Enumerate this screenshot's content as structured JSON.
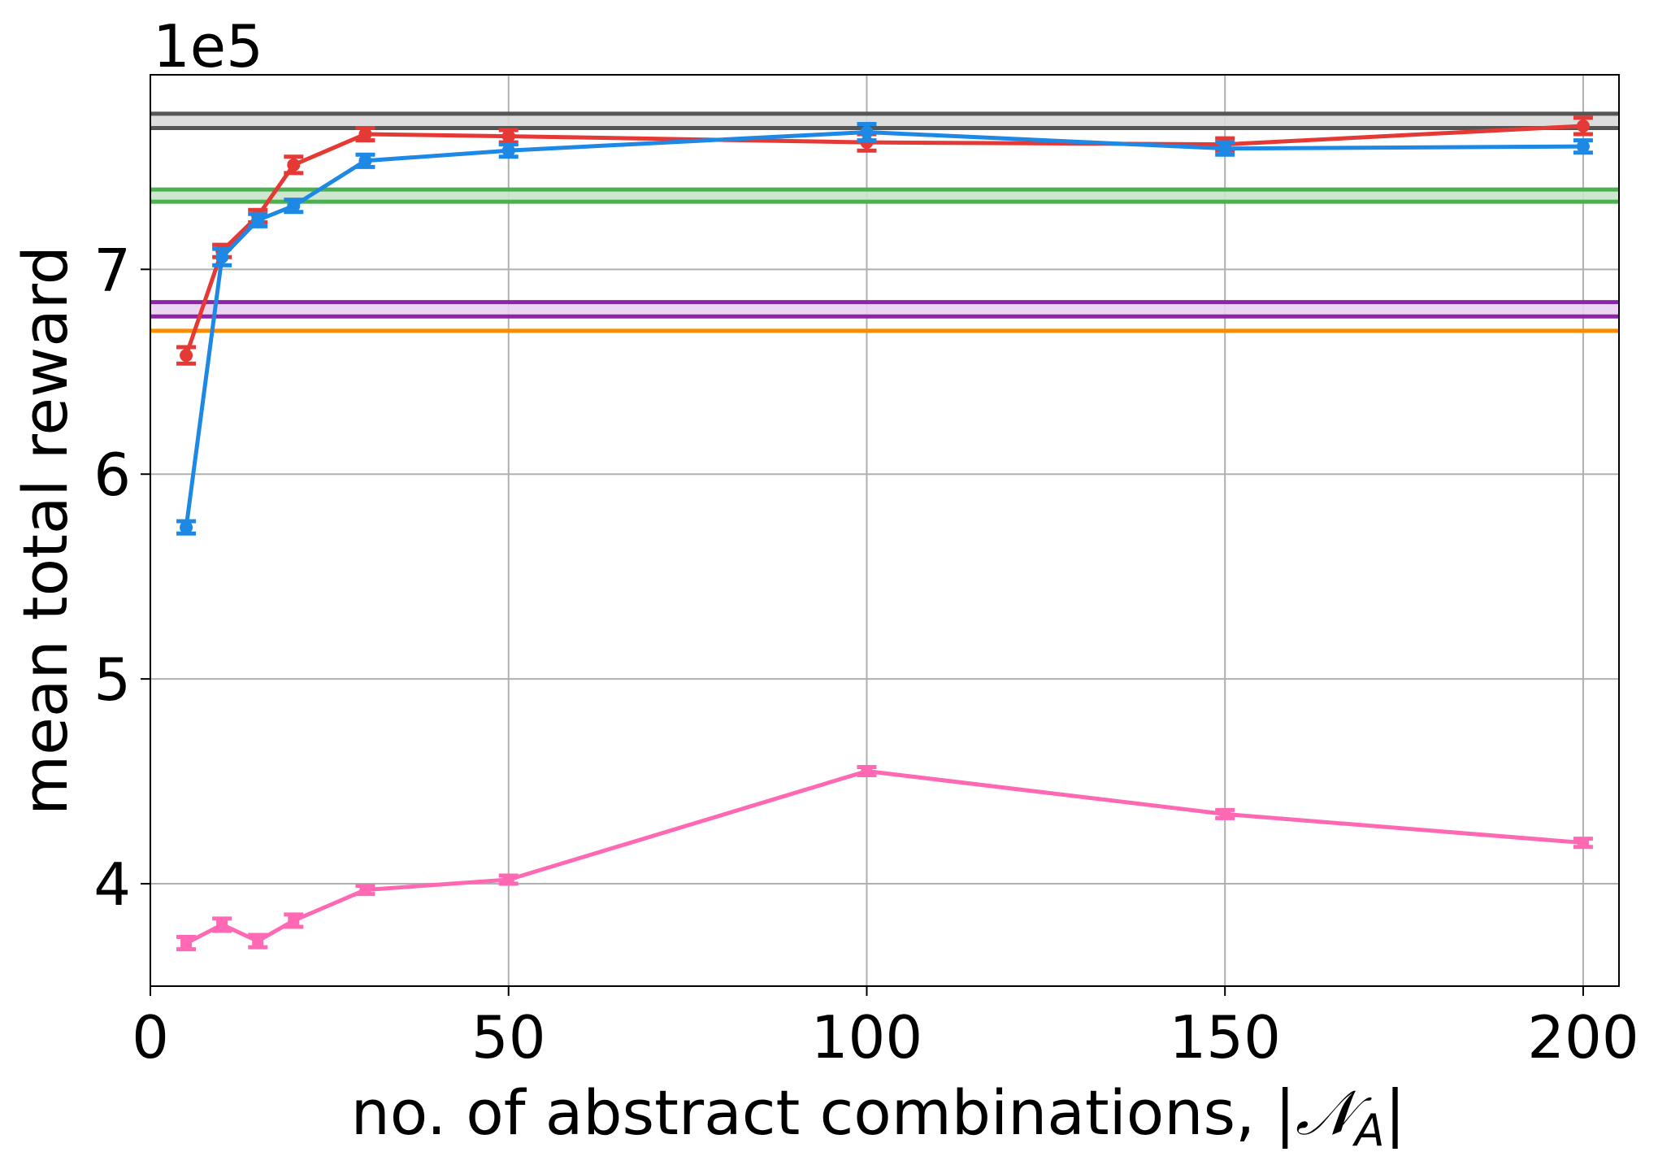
{
  "chart_data": {
    "type": "line",
    "title": "",
    "xlabel": "no. of abstract combinations, |",
    "xlabel_math": "𝒩",
    "xlabel_sub": "A",
    "xlabel_end": "|",
    "ylabel": "mean total reward",
    "y_scale_label": "1e5",
    "xlim": [
      0,
      205
    ],
    "ylim": [
      3.5,
      7.95
    ],
    "x_ticks": [
      0,
      50,
      100,
      150,
      200
    ],
    "x_tick_labels": [
      "0",
      "50",
      "100",
      "150",
      "200"
    ],
    "y_ticks": [
      4,
      5,
      6,
      7
    ],
    "y_tick_labels": [
      "4",
      "5",
      "6",
      "7"
    ],
    "grid": true,
    "legend": "none",
    "x": [
      5,
      10,
      15,
      20,
      30,
      50,
      100,
      150,
      200
    ],
    "series": [
      {
        "color": "#e53935",
        "marker": "circle",
        "values": [
          6.58,
          7.09,
          7.26,
          7.51,
          7.66,
          7.65,
          7.62,
          7.61,
          7.7
        ],
        "errors": [
          0.04,
          0.03,
          0.03,
          0.04,
          0.03,
          0.03,
          0.04,
          0.03,
          0.04
        ]
      },
      {
        "color": "#1e88e5",
        "marker": "circle",
        "values": [
          5.74,
          7.06,
          7.24,
          7.31,
          7.53,
          7.58,
          7.67,
          7.59,
          7.6
        ],
        "errors": [
          0.03,
          0.04,
          0.03,
          0.03,
          0.03,
          0.03,
          0.04,
          0.03,
          0.03
        ]
      },
      {
        "color": "#ff69b4",
        "marker": "square",
        "values": [
          3.71,
          3.8,
          3.72,
          3.82,
          3.97,
          4.02,
          4.55,
          4.34,
          4.2
        ],
        "errors": [
          0.03,
          0.03,
          0.03,
          0.03,
          0.02,
          0.02,
          0.02,
          0.02,
          0.02
        ]
      }
    ],
    "reference_bands": [
      {
        "color": "#555555",
        "fill": "#d9d9d9",
        "low": 7.69,
        "high": 7.76
      },
      {
        "color": "#4caf50",
        "fill": "#c8e6c9",
        "low": 7.33,
        "high": 7.39
      },
      {
        "color": "#8e24aa",
        "fill": "#ead1f0",
        "low": 6.77,
        "high": 6.84
      },
      {
        "color": "#fb8c00",
        "fill": "#fb8c00",
        "low": 6.7,
        "high": 6.7
      }
    ]
  }
}
